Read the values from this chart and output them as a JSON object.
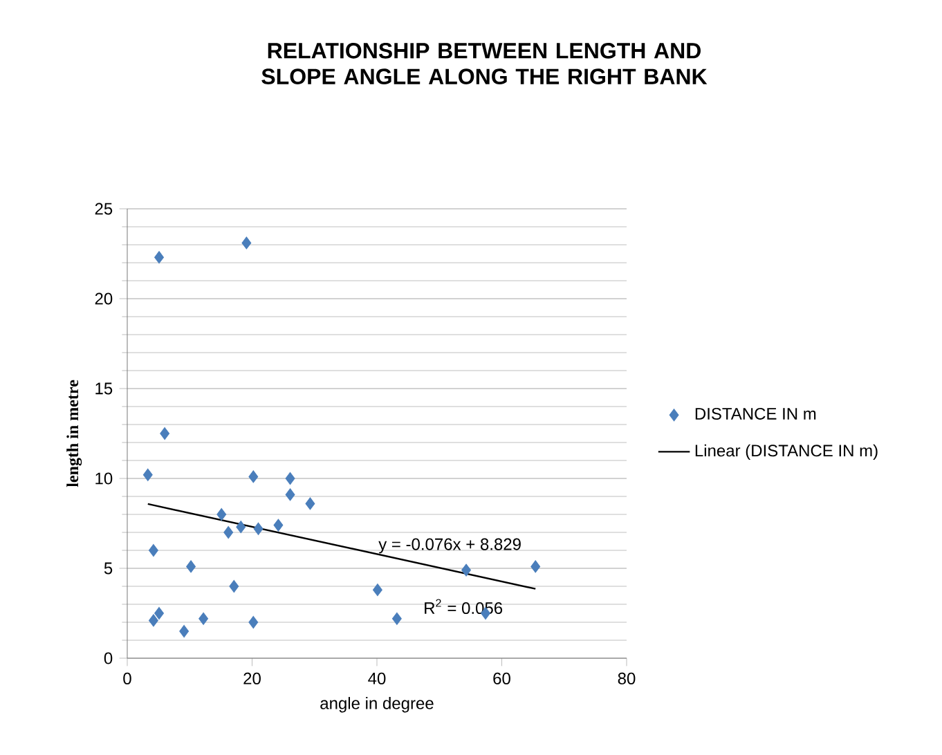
{
  "chart_data": {
    "type": "scatter",
    "title": "RELATIONSHIP BETWEEN LENGTH AND SLOPE ANGLE ALONG THE RIGHT BANK",
    "xlabel": "angle in degree",
    "ylabel": "length in metre",
    "series": [
      {
        "name": "DISTANCE IN m",
        "color": "#4a7ebb",
        "marker": "diamond",
        "x": [
          3.3,
          5.1,
          19.1,
          6.0,
          4.2,
          4.2,
          5.1,
          9.1,
          10.2,
          12.2,
          15.1,
          16.2,
          18.2,
          21.0,
          24.2,
          20.2,
          26.1,
          26.1,
          29.3,
          17.1,
          20.2,
          40.1,
          43.2,
          54.3,
          57.4,
          65.4
        ],
        "values": [
          10.2,
          22.3,
          23.1,
          12.5,
          6.0,
          2.1,
          2.5,
          1.5,
          5.1,
          2.2,
          8.0,
          7.0,
          7.3,
          7.2,
          7.4,
          10.1,
          10.0,
          9.1,
          8.6,
          4.0,
          2.0,
          3.8,
          2.2,
          4.9,
          2.5,
          5.1
        ]
      },
      {
        "name": "Linear (DISTANCE IN m)",
        "type": "line",
        "color": "#000000",
        "x": [
          3.3,
          65.4
        ],
        "values": [
          8.58,
          3.86
        ]
      }
    ],
    "annotations": [
      "y = -0.076x + 8.829",
      "R$^{2}$ = 0.056"
    ],
    "xlim": [
      0,
      80
    ],
    "ylim": [
      0,
      25
    ],
    "xticks": [
      0,
      20,
      40,
      60,
      80
    ],
    "yticks": [
      0,
      5,
      10,
      15,
      20,
      25
    ],
    "grid": "y",
    "legend": "right"
  }
}
